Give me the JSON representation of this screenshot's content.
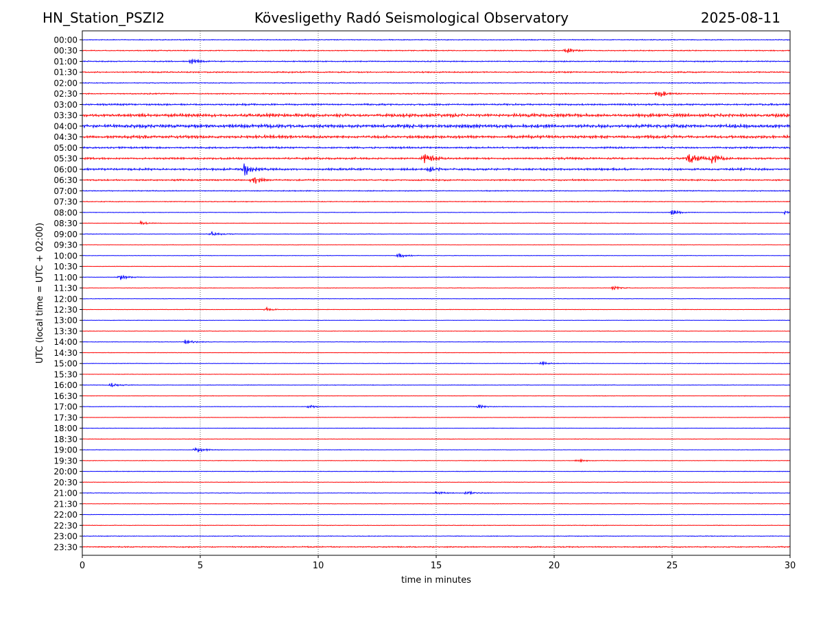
{
  "header": {
    "station": "HN_Station_PSZI2",
    "title": "Kövesligethy Radó Seismological Observatory",
    "date": "2025-08-11"
  },
  "chart_data": {
    "type": "line",
    "title": "Kövesligethy Radó Seismological Observatory",
    "xlabel": "time in minutes",
    "ylabel": "UTC (local time = UTC + 02:00)",
    "xlim": [
      0,
      30
    ],
    "xticks": [
      0,
      5,
      10,
      15,
      20,
      25,
      30
    ],
    "grid": "vertical dotted lines at x = 5, 10, 15, 20, 25",
    "series_colors": [
      "#0000ff",
      "#ff0000"
    ],
    "rows": [
      "00:00",
      "00:30",
      "01:00",
      "01:30",
      "02:00",
      "02:30",
      "03:00",
      "03:30",
      "04:00",
      "04:30",
      "05:00",
      "05:30",
      "06:00",
      "06:30",
      "07:00",
      "07:30",
      "08:00",
      "08:30",
      "09:00",
      "09:30",
      "10:00",
      "10:30",
      "11:00",
      "11:30",
      "12:00",
      "12:30",
      "13:00",
      "13:30",
      "14:00",
      "14:30",
      "15:00",
      "15:30",
      "16:00",
      "16:30",
      "17:00",
      "17:30",
      "18:00",
      "18:30",
      "19:00",
      "19:30",
      "20:00",
      "20:30",
      "21:00",
      "21:30",
      "22:00",
      "22:30",
      "23:00",
      "23:30"
    ],
    "noise_level": [
      0.8,
      0.9,
      1.0,
      1.2,
      0.8,
      1.0,
      1.6,
      3.0,
      3.0,
      2.6,
      1.6,
      1.8,
      1.9,
      1.4,
      0.9,
      0.7,
      0.5,
      0.5,
      0.5,
      0.4,
      0.4,
      0.4,
      0.4,
      0.45,
      0.45,
      0.45,
      0.45,
      0.45,
      0.45,
      0.45,
      0.45,
      0.45,
      0.5,
      0.45,
      0.45,
      0.45,
      0.45,
      0.5,
      0.45,
      0.5,
      0.5,
      0.5,
      0.5,
      0.45,
      0.5,
      0.5,
      0.6,
      1.1
    ],
    "events": [
      {
        "row": "05:30",
        "t": 14.5,
        "amp": 8
      },
      {
        "row": "05:30",
        "t": 25.7,
        "amp": 10
      },
      {
        "row": "05:30",
        "t": 26.7,
        "amp": 7
      },
      {
        "row": "06:00",
        "t": 6.9,
        "amp": 10
      },
      {
        "row": "06:00",
        "t": 14.7,
        "amp": 5
      },
      {
        "row": "06:30",
        "t": 7.2,
        "amp": 7
      },
      {
        "row": "02:30",
        "t": 24.4,
        "amp": 6
      },
      {
        "row": "00:30",
        "t": 20.5,
        "amp": 4
      },
      {
        "row": "01:00",
        "t": 4.6,
        "amp": 4
      },
      {
        "row": "08:00",
        "t": 25.0,
        "amp": 4
      },
      {
        "row": "08:00",
        "t": 29.8,
        "amp": 3
      },
      {
        "row": "08:30",
        "t": 2.5,
        "amp": 3
      },
      {
        "row": "09:00",
        "t": 5.5,
        "amp": 4
      },
      {
        "row": "10:00",
        "t": 13.4,
        "amp": 4
      },
      {
        "row": "11:00",
        "t": 1.6,
        "amp": 5
      },
      {
        "row": "11:30",
        "t": 22.5,
        "amp": 3
      },
      {
        "row": "12:30",
        "t": 7.8,
        "amp": 3
      },
      {
        "row": "14:00",
        "t": 4.4,
        "amp": 4
      },
      {
        "row": "15:00",
        "t": 19.5,
        "amp": 3
      },
      {
        "row": "16:00",
        "t": 1.2,
        "amp": 3
      },
      {
        "row": "17:00",
        "t": 9.6,
        "amp": 3
      },
      {
        "row": "17:00",
        "t": 16.8,
        "amp": 3
      },
      {
        "row": "19:00",
        "t": 4.8,
        "amp": 5
      },
      {
        "row": "19:30",
        "t": 21.0,
        "amp": 3
      },
      {
        "row": "21:00",
        "t": 15.0,
        "amp": 3
      },
      {
        "row": "21:00",
        "t": 16.3,
        "amp": 3
      }
    ]
  }
}
